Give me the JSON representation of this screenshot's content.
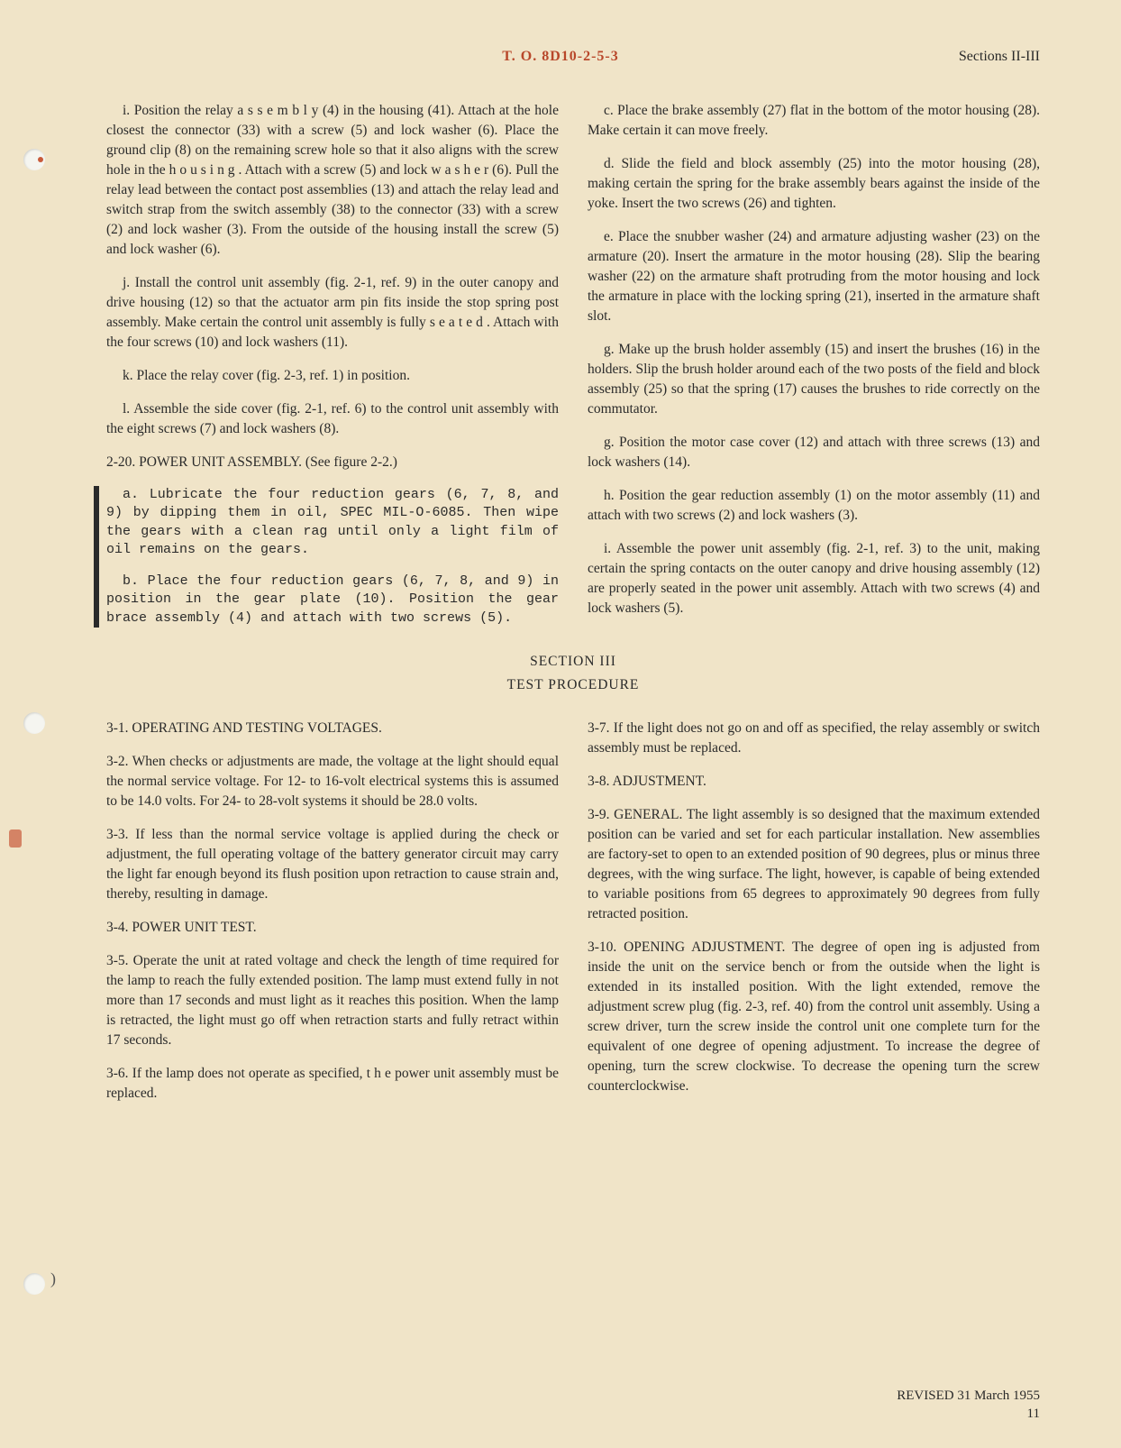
{
  "header": {
    "center": "T. O. 8D10-2-5-3",
    "right": "Sections II-III"
  },
  "col1": {
    "p_i": "i. Position the relay a s s e m b l y (4) in the housing (41). Attach at the hole closest the connector (33) with a screw (5) and lock washer (6). Place the ground clip (8) on the remaining screw hole so that it also aligns with the screw hole in the h o u s i n g . Attach with a screw (5) and lock w a s h e r (6). Pull the relay lead between the contact post assemblies (13) and attach the relay lead and switch strap from the switch assembly (38) to the connector (33) with a screw (2) and lock washer (3). From the outside of the housing install the screw (5) and lock washer (6).",
    "p_j": "j. Install the control unit assembly (fig. 2-1, ref. 9) in the outer canopy and drive housing (12) so that the actuator arm pin fits inside the stop spring post assembly. Make certain the control unit assembly is fully s e a t e d . Attach with the four screws (10) and lock washers (11).",
    "p_k": "k. Place the relay cover (fig. 2-3, ref. 1) in position.",
    "p_l": "l. Assemble the side cover (fig. 2-1, ref. 6) to the control unit assembly with the eight screws (7) and lock washers (8).",
    "h_220": "2-20. POWER UNIT ASSEMBLY. (See figure 2-2.)",
    "p_a": "a. Lubricate the four reduction gears (6, 7, 8, and 9) by dipping them in oil, SPEC MIL-O-6085. Then wipe the gears with a clean rag until only a light film of oil remains on the gears.",
    "p_b": "b. Place the four reduction gears (6, 7, 8, and 9) in position in the gear plate (10). Position the gear brace assembly (4) and attach with two screws (5)."
  },
  "col2": {
    "p_c": "c. Place the brake assembly (27) flat in the bottom of the motor housing (28). Make certain it can move freely.",
    "p_d": "d. Slide the field and block assembly (25) into the motor housing (28), making certain the spring for the brake assembly bears against the inside of the yoke. Insert the two screws (26) and tighten.",
    "p_e": "e. Place the snubber washer (24) and armature adjusting washer (23) on the armature (20). Insert the armature in the motor housing (28). Slip the bearing washer (22) on the armature shaft protruding from the motor housing and lock the armature in place with the locking spring (21), inserted in the armature shaft slot.",
    "p_g1": "g. Make up the brush holder assembly (15) and insert the brushes (16) in the holders. Slip the brush holder around each of the two posts of the field and block assembly (25) so that the spring (17) causes the brushes to ride correctly on the commutator.",
    "p_g2": "g. Position the motor case cover (12) and attach with three screws (13) and lock washers (14).",
    "p_h": "h. Position the gear reduction assembly (1) on the motor assembly (11) and attach with two screws (2) and lock washers (3).",
    "p_i2": "i. Assemble the power unit assembly (fig. 2-1, ref. 3) to the unit, making certain the spring contacts on the outer canopy and drive housing assembly (12) are properly seated in the power unit assembly. Attach with two screws (4) and lock washers (5)."
  },
  "section3": {
    "title": "SECTION III",
    "subtitle": "TEST PROCEDURE"
  },
  "col3": {
    "h_31": "3-1. OPERATING AND TESTING VOLTAGES.",
    "p_32": "3-2. When checks or adjustments are made, the voltage at the light should equal the normal service voltage. For 12- to 16-volt electrical systems this is assumed to be 14.0 volts. For 24- to 28-volt systems it should be 28.0 volts.",
    "p_33": "3-3. If less than the normal service voltage is applied during the check or adjustment, the full operating voltage of the battery generator circuit may carry the light far enough beyond its flush position upon retraction to cause strain and, thereby, resulting in damage.",
    "h_34": "3-4. POWER UNIT TEST.",
    "p_35": "3-5. Operate the unit at rated voltage and check the length of time required for the lamp to reach the fully extended position. The lamp must extend fully in not more than 17 seconds and must light as it reaches this position. When the lamp is retracted, the light must go off when retraction starts and fully retract within 17 seconds.",
    "p_36": "3-6. If the lamp does not operate as specified, t h e power unit assembly must be replaced."
  },
  "col4": {
    "p_37": "3-7. If the light does not go on and off as specified, the relay assembly or switch assembly must be replaced.",
    "h_38": "3-8. ADJUSTMENT.",
    "p_39": "3-9. GENERAL. The light assembly is so designed that the maximum extended position can be varied and set for each particular installation. New assemblies are factory-set to open to an extended position of 90 degrees, plus or minus three degrees, with the wing surface. The light, however, is capable of being extended to variable positions from 65 degrees to approximately 90 degrees from fully retracted position.",
    "p_310": "3-10. OPENING ADJUSTMENT. The degree of open ing is adjusted from inside the unit on the service bench or from the outside when the light is extended in its installed position. With the light extended, remove the adjustment screw plug (fig. 2-3, ref. 40) from the control unit assembly. Using a screw driver, turn the screw inside the control unit one complete turn for the equivalent of one degree of opening adjustment. To increase the degree of opening, turn the screw clockwise. To decrease the opening turn the screw counterclockwise."
  },
  "footer": {
    "revised": "REVISED 31 March 1955",
    "page": "11"
  }
}
